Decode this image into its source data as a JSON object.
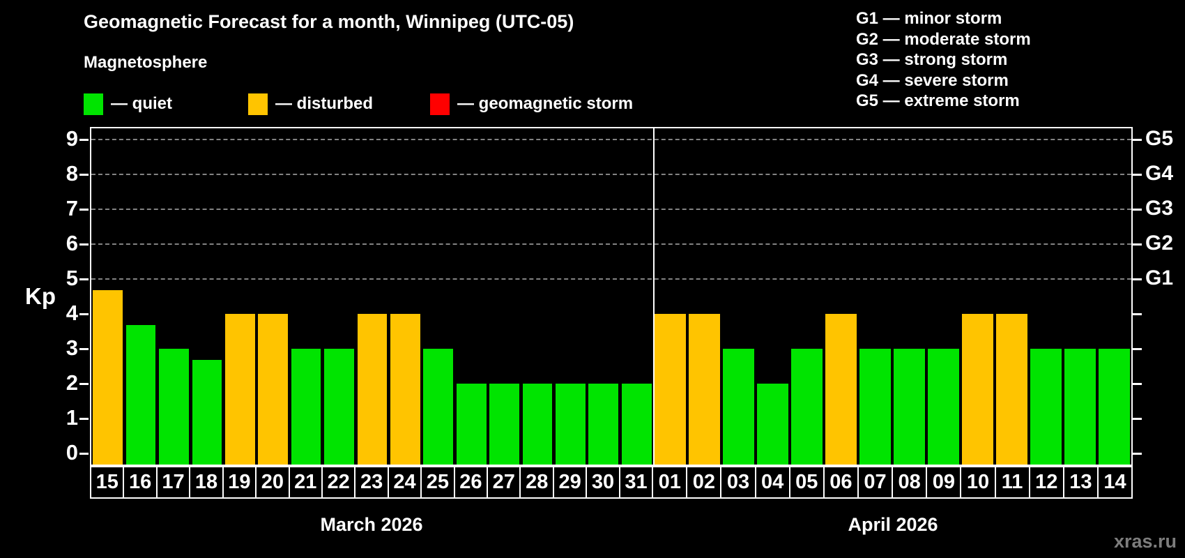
{
  "meta": {
    "title": "Geomagnetic Forecast for a month, Winnipeg (UTC-05)",
    "subtitle": "Magnetosphere",
    "watermark": "xras.ru"
  },
  "legend": {
    "items": [
      {
        "name": "quiet",
        "label": "— quiet",
        "color": "#00e400"
      },
      {
        "name": "disturbed",
        "label": "— disturbed",
        "color": "#ffc400"
      },
      {
        "name": "geomagnetic-storm",
        "label": "— geomagnetic storm",
        "color": "#ff0000"
      }
    ]
  },
  "g_scale_legend": {
    "lines": [
      "G1 — minor storm",
      "G2 — moderate storm",
      "G3 — strong storm",
      "G4 — severe storm",
      "G5 — extreme storm"
    ]
  },
  "chart_data": {
    "type": "bar",
    "ylabel": "Kp",
    "ylim": [
      0,
      9
    ],
    "y_ticks": [
      0,
      1,
      2,
      3,
      4,
      5,
      6,
      7,
      8,
      9
    ],
    "gridlines_kp": [
      5,
      6,
      7,
      8,
      9
    ],
    "grid_style": "dashed",
    "right_axis": [
      {
        "label": "G1",
        "kp": 5
      },
      {
        "label": "G2",
        "kp": 6
      },
      {
        "label": "G3",
        "kp": 7
      },
      {
        "label": "G4",
        "kp": 8
      },
      {
        "label": "G5",
        "kp": 9
      }
    ],
    "colors": {
      "quiet": "#00e400",
      "disturbed": "#ffc400",
      "storm": "#ff0000"
    },
    "months": [
      {
        "label": "March 2026",
        "days": [
          {
            "day": "15",
            "value": 4.67,
            "status": "disturbed"
          },
          {
            "day": "16",
            "value": 3.67,
            "status": "quiet"
          },
          {
            "day": "17",
            "value": 3.0,
            "status": "quiet"
          },
          {
            "day": "18",
            "value": 2.67,
            "status": "quiet"
          },
          {
            "day": "19",
            "value": 4.0,
            "status": "disturbed"
          },
          {
            "day": "20",
            "value": 4.0,
            "status": "disturbed"
          },
          {
            "day": "21",
            "value": 3.0,
            "status": "quiet"
          },
          {
            "day": "22",
            "value": 3.0,
            "status": "quiet"
          },
          {
            "day": "23",
            "value": 4.0,
            "status": "disturbed"
          },
          {
            "day": "24",
            "value": 4.0,
            "status": "disturbed"
          },
          {
            "day": "25",
            "value": 3.0,
            "status": "quiet"
          },
          {
            "day": "26",
            "value": 2.0,
            "status": "quiet"
          },
          {
            "day": "27",
            "value": 2.0,
            "status": "quiet"
          },
          {
            "day": "28",
            "value": 2.0,
            "status": "quiet"
          },
          {
            "day": "29",
            "value": 2.0,
            "status": "quiet"
          },
          {
            "day": "30",
            "value": 2.0,
            "status": "quiet"
          },
          {
            "day": "31",
            "value": 2.0,
            "status": "quiet"
          }
        ]
      },
      {
        "label": "April 2026",
        "days": [
          {
            "day": "01",
            "value": 4.0,
            "status": "disturbed"
          },
          {
            "day": "02",
            "value": 4.0,
            "status": "disturbed"
          },
          {
            "day": "03",
            "value": 3.0,
            "status": "quiet"
          },
          {
            "day": "04",
            "value": 2.0,
            "status": "quiet"
          },
          {
            "day": "05",
            "value": 3.0,
            "status": "quiet"
          },
          {
            "day": "06",
            "value": 4.0,
            "status": "disturbed"
          },
          {
            "day": "07",
            "value": 3.0,
            "status": "quiet"
          },
          {
            "day": "08",
            "value": 3.0,
            "status": "quiet"
          },
          {
            "day": "09",
            "value": 3.0,
            "status": "quiet"
          },
          {
            "day": "10",
            "value": 4.0,
            "status": "disturbed"
          },
          {
            "day": "11",
            "value": 4.0,
            "status": "disturbed"
          },
          {
            "day": "12",
            "value": 3.0,
            "status": "quiet"
          },
          {
            "day": "13",
            "value": 3.0,
            "status": "quiet"
          },
          {
            "day": "14",
            "value": 3.0,
            "status": "quiet"
          }
        ]
      }
    ]
  }
}
